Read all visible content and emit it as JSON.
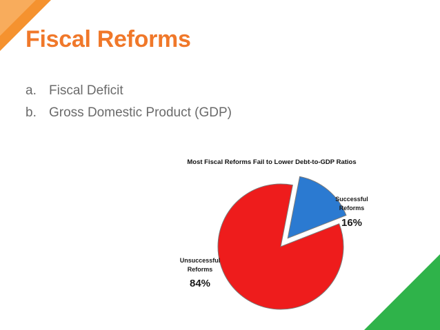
{
  "slide": {
    "title": "Fiscal Reforms",
    "bullets": [
      {
        "marker": "a.",
        "text": "Fiscal Deficit"
      },
      {
        "marker": "b.",
        "text": "Gross Domestic Product (GDP)"
      }
    ]
  },
  "colors": {
    "accent_orange": "#f0782a",
    "accent_green": "#2fb34a",
    "unsuccessful": "#ee1c1c",
    "successful": "#2b7ad1"
  },
  "chart_data": {
    "type": "pie",
    "title": "Most Fiscal Reforms Fail to Lower Debt-to-GDP Ratios",
    "slices": [
      {
        "label_line1": "Successful",
        "label_line2": "Reforms",
        "value": 16,
        "value_label": "16%",
        "color": "#2b7ad1",
        "exploded": true
      },
      {
        "label_line1": "Unsuccessful",
        "label_line2": "Reforms",
        "value": 84,
        "value_label": "84%",
        "color": "#ee1c1c",
        "exploded": false
      }
    ]
  }
}
